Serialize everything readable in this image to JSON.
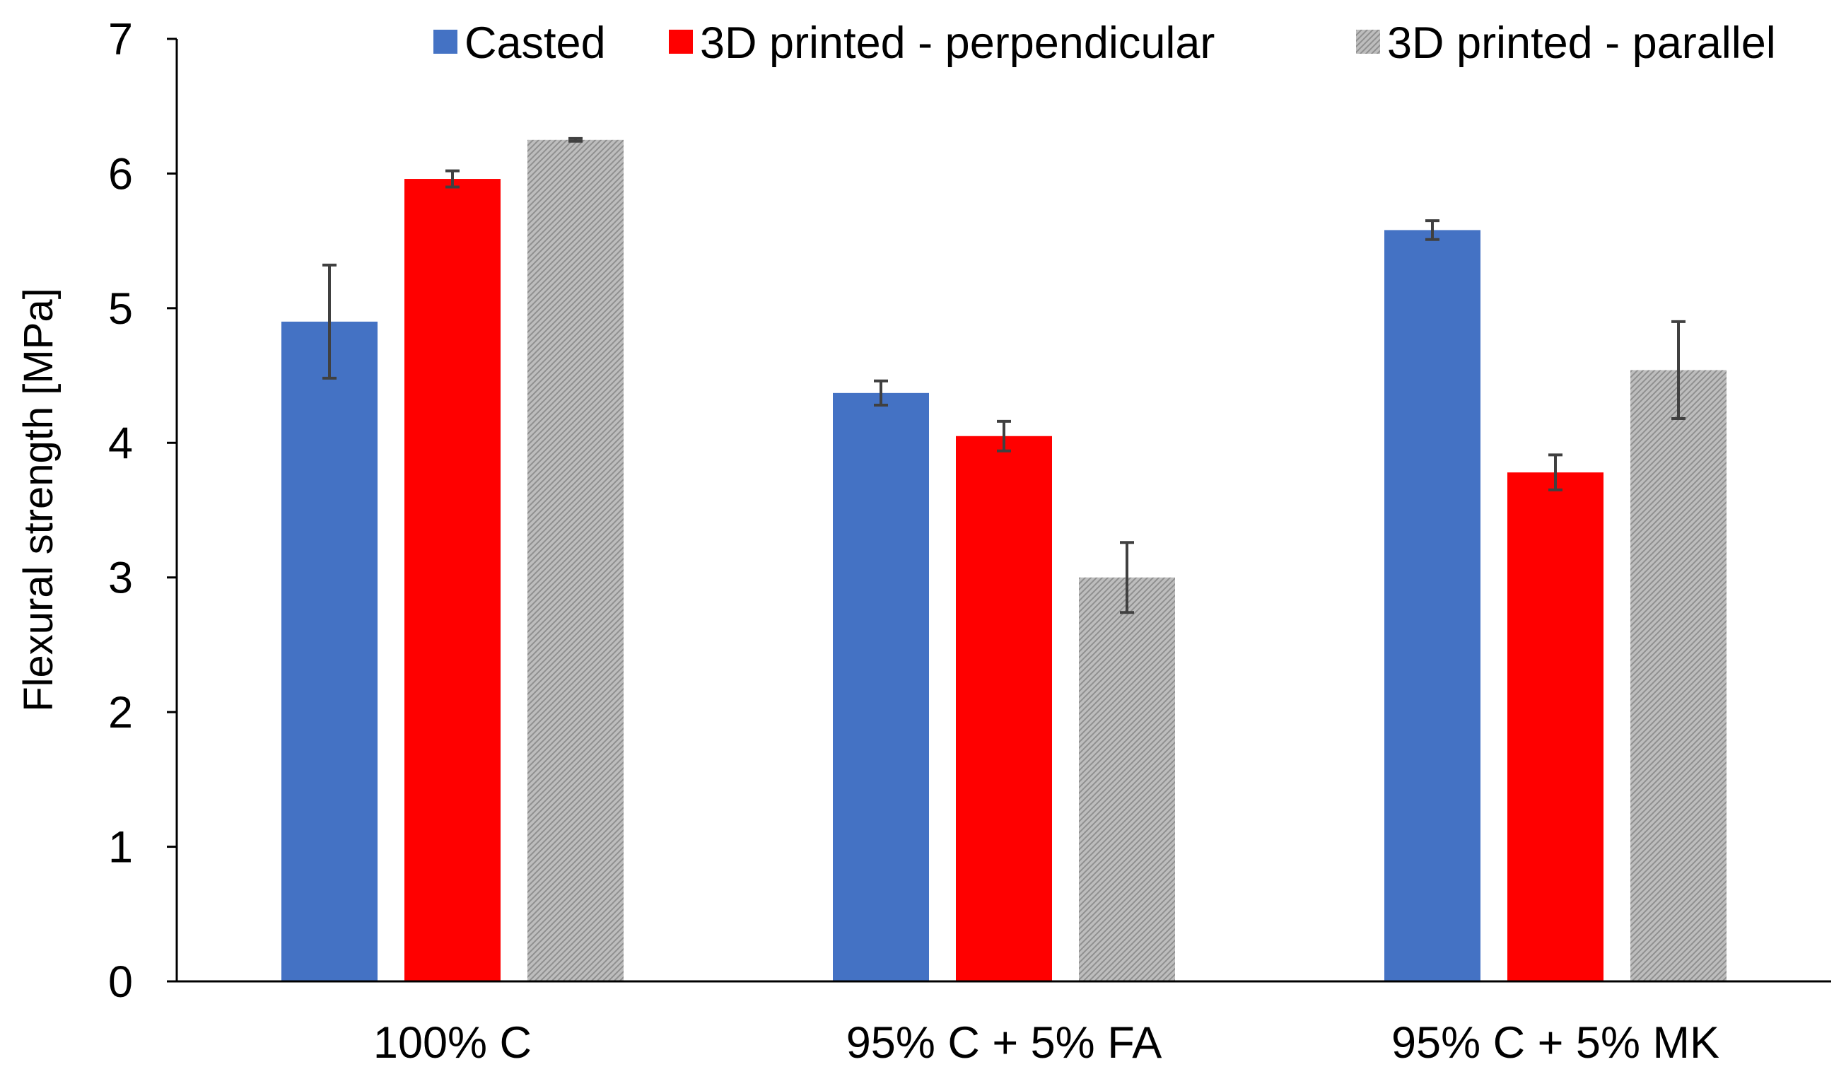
{
  "chart_data": {
    "type": "bar",
    "title": "",
    "xlabel": "",
    "ylabel": "Flexural strength [MPa]",
    "ylim": [
      0,
      7
    ],
    "yticks": [
      0,
      1,
      2,
      3,
      4,
      5,
      6,
      7
    ],
    "grid": false,
    "legend_position": "top-right",
    "categories": [
      "100% C",
      "95% C + 5% FA",
      "95% C + 5% MK"
    ],
    "series": [
      {
        "name": "Casted",
        "color": "#4472C4",
        "pattern": "solid",
        "values": [
          4.9,
          4.37,
          5.58
        ],
        "errors": [
          0.42,
          0.09,
          0.07
        ]
      },
      {
        "name": "3D printed - perpendicular",
        "color": "#FF0000",
        "pattern": "solid",
        "values": [
          5.96,
          4.05,
          3.78
        ],
        "errors": [
          0.06,
          0.11,
          0.13
        ]
      },
      {
        "name": "3D printed - parallel",
        "color": "#A6A6A6",
        "pattern": "hatched",
        "values": [
          6.25,
          3.0,
          4.54
        ],
        "errors": [
          0.01,
          0.26,
          0.36
        ]
      }
    ]
  }
}
